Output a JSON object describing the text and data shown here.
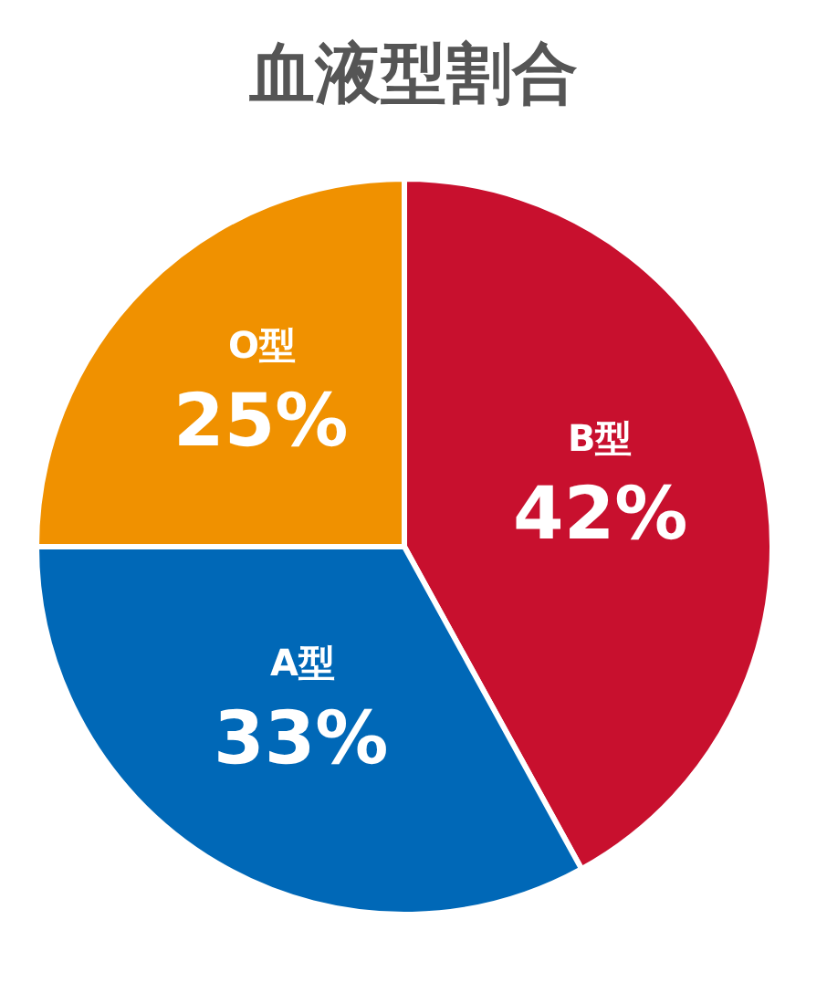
{
  "chart_data": {
    "type": "pie",
    "title": "血液型割合",
    "categories": [
      "B型",
      "A型",
      "O型"
    ],
    "values": [
      42,
      33,
      25
    ],
    "value_labels": [
      "42%",
      "33%",
      "25%"
    ],
    "colors": [
      "#c8102e",
      "#0068b7",
      "#f09100"
    ],
    "legend": false
  }
}
